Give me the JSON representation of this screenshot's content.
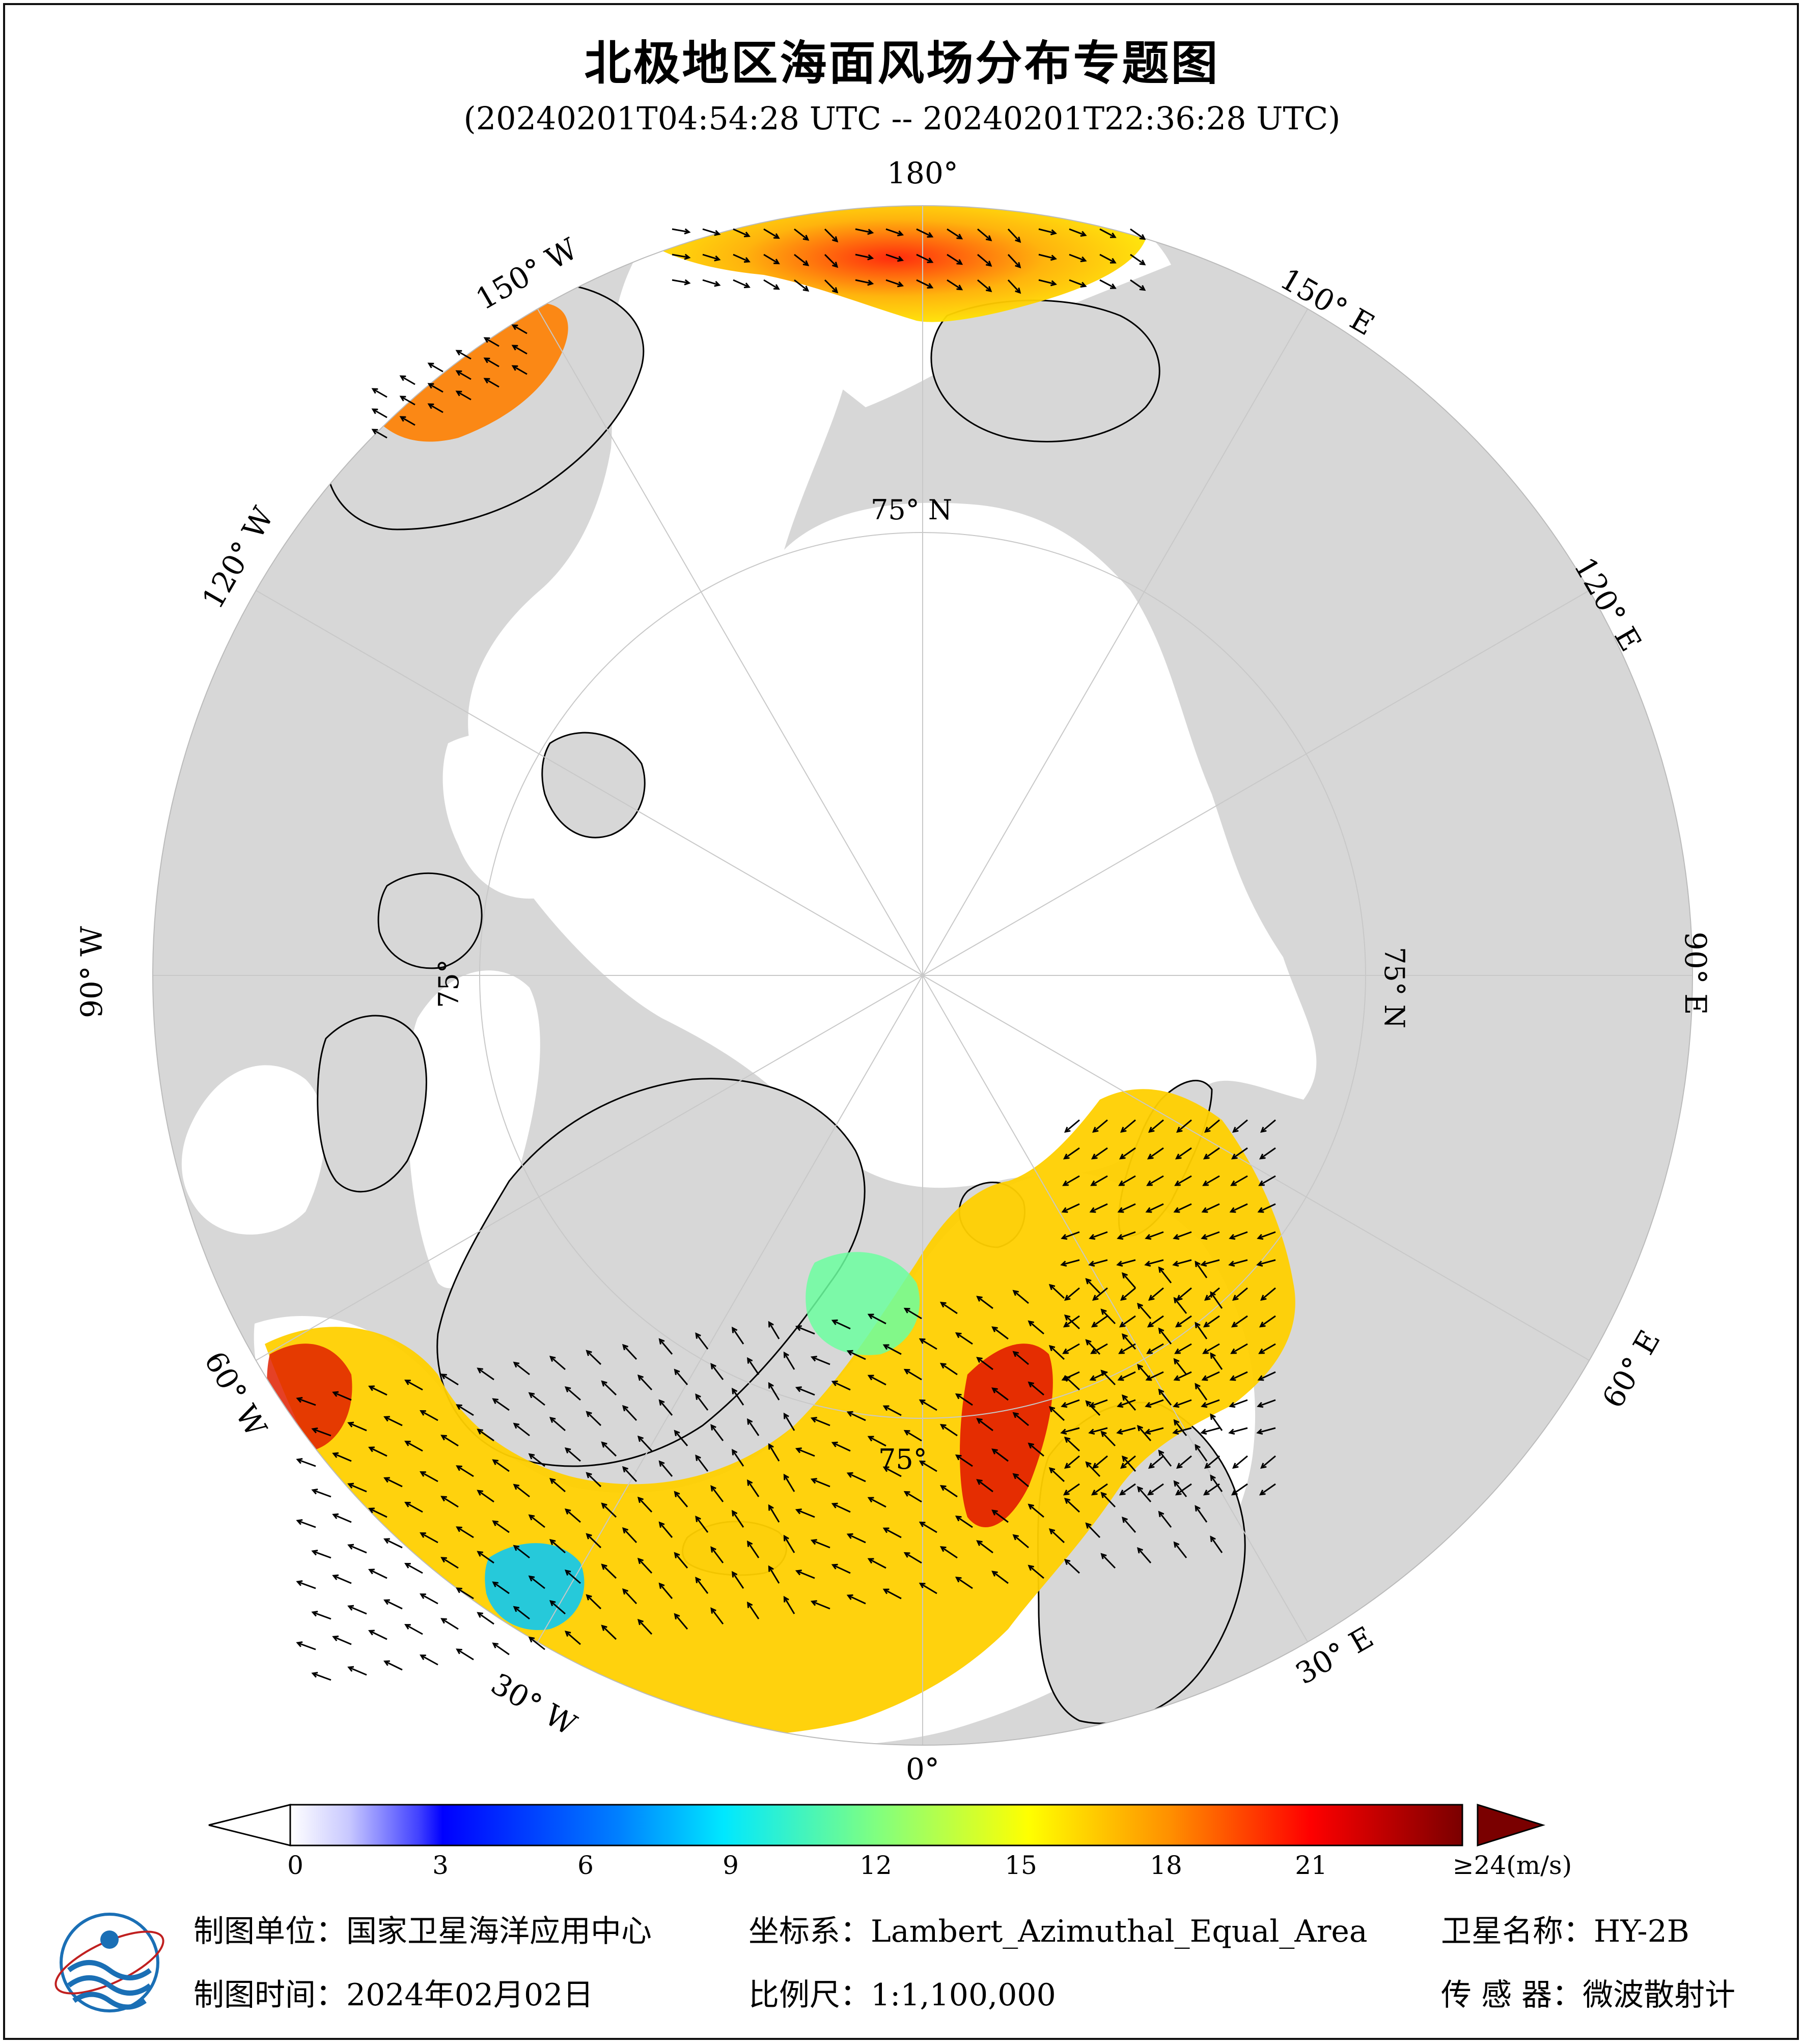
{
  "title": "北极地区海面风场分布专题图",
  "subtitle": "(20240201T04:54:28 UTC -- 20240201T22:36:28 UTC)",
  "map_labels": {
    "lon_180": "180°",
    "lon_150e": "150° E",
    "lon_120e": "120° E",
    "lon_90e": "90° E",
    "lon_60e": "60° E",
    "lon_30e": "30° E",
    "lon_0": "0°",
    "lon_30w": "30° W",
    "lon_60w": "60° W",
    "lon_90w": "90° W",
    "lon_120w": "120° W",
    "lon_150w": "150° W",
    "lat_75_top": "75° N",
    "lat_75_right": "75° N",
    "lat_75_left": "75°",
    "lat_75_bottom": "75°"
  },
  "colorbar": {
    "ticks": [
      "0",
      "3",
      "6",
      "9",
      "12",
      "15",
      "18",
      "21",
      "≥24(m/s)"
    ],
    "tick_values": [
      0,
      3,
      6,
      9,
      12,
      15,
      18,
      21,
      24
    ],
    "colors": [
      "#ffffff",
      "#cfcfff",
      "#9a9aff",
      "#5a5aff",
      "#0000ff",
      "#0066ff",
      "#00c8ff",
      "#40ffd0",
      "#9cff80",
      "#ffff00",
      "#ffb000",
      "#ff5000",
      "#e00000",
      "#7a0000"
    ]
  },
  "footer": {
    "unit": "制图单位：国家卫星海洋应用中心",
    "date": "制图时间：2024年02月02日",
    "crs": "坐标系：Lambert_Azimuthal_Equal_Area",
    "scale": "比例尺：1:1,100,000",
    "satellite": "卫星名称：HY-2B",
    "sensor": "传 感 器：微波散射计"
  },
  "colors": {
    "land": "#d7d7d7",
    "ocean": "#ffffff",
    "graticule": "#c8c8c8"
  }
}
